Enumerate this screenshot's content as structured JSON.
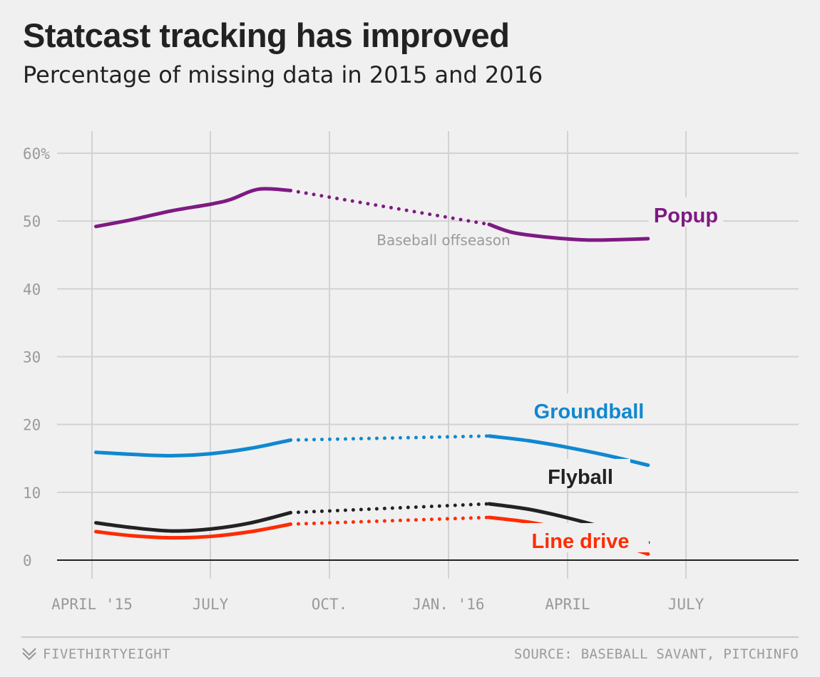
{
  "chart_data": {
    "type": "line",
    "title": "Statcast tracking has improved",
    "subtitle": "Percentage of missing data in 2015 and 2016",
    "xlabel": "",
    "ylabel": "",
    "ylim": [
      0,
      60
    ],
    "x_ticks": [
      "APRIL '15",
      "JULY",
      "OCT.",
      "JAN. '16",
      "APRIL",
      "JULY"
    ],
    "y_ticks": [
      "0",
      "10",
      "20",
      "30",
      "40",
      "50",
      "60%"
    ],
    "annotation": "Baseball offseason",
    "series": [
      {
        "name": "Popup",
        "color": "#7e1a82",
        "season2015": [
          [
            0.1,
            49.2
          ],
          [
            1.0,
            50.2
          ],
          [
            2.0,
            51.5
          ],
          [
            3.0,
            52.5
          ],
          [
            3.5,
            53.2
          ],
          [
            4.2,
            54.7
          ],
          [
            5.0,
            54.5
          ]
        ],
        "offseason": [
          [
            5.0,
            54.5
          ],
          [
            10.0,
            49.5
          ]
        ],
        "season2016": [
          [
            10.0,
            49.5
          ],
          [
            10.6,
            48.3
          ],
          [
            11.5,
            47.6
          ],
          [
            12.5,
            47.2
          ],
          [
            13.5,
            47.3
          ],
          [
            14.0,
            47.4
          ]
        ]
      },
      {
        "name": "Groundball",
        "color": "#1088d0",
        "season2015": [
          [
            0.1,
            15.9
          ],
          [
            1.0,
            15.6
          ],
          [
            2.0,
            15.4
          ],
          [
            3.0,
            15.7
          ],
          [
            4.0,
            16.5
          ],
          [
            5.0,
            17.7
          ]
        ],
        "offseason": [
          [
            5.0,
            17.7
          ],
          [
            10.0,
            18.3
          ]
        ],
        "season2016": [
          [
            10.0,
            18.3
          ],
          [
            11.0,
            17.6
          ],
          [
            12.0,
            16.6
          ],
          [
            13.0,
            15.4
          ],
          [
            14.0,
            14.0
          ]
        ]
      },
      {
        "name": "Flyball",
        "color": "#222222",
        "season2015": [
          [
            0.1,
            5.5
          ],
          [
            1.0,
            4.8
          ],
          [
            2.0,
            4.3
          ],
          [
            3.0,
            4.6
          ],
          [
            4.0,
            5.5
          ],
          [
            5.0,
            7.0
          ]
        ],
        "offseason": [
          [
            5.0,
            7.0
          ],
          [
            10.0,
            8.3
          ]
        ],
        "season2016": [
          [
            10.0,
            8.3
          ],
          [
            11.0,
            7.5
          ],
          [
            12.0,
            6.2
          ],
          [
            13.0,
            4.6
          ],
          [
            14.0,
            2.6
          ]
        ]
      },
      {
        "name": "Line drive",
        "color": "#fe2c03",
        "season2015": [
          [
            0.1,
            4.2
          ],
          [
            1.0,
            3.6
          ],
          [
            2.0,
            3.3
          ],
          [
            3.0,
            3.5
          ],
          [
            4.0,
            4.2
          ],
          [
            5.0,
            5.3
          ]
        ],
        "offseason": [
          [
            5.0,
            5.3
          ],
          [
            10.0,
            6.3
          ]
        ],
        "season2016": [
          [
            10.0,
            6.3
          ],
          [
            11.0,
            5.6
          ],
          [
            12.0,
            4.4
          ],
          [
            13.0,
            2.8
          ],
          [
            14.0,
            0.9
          ]
        ]
      }
    ]
  },
  "footer": {
    "brand": "FIVETHIRTYEIGHT",
    "source": "SOURCE: BASEBALL SAVANT, PITCHINFO"
  }
}
